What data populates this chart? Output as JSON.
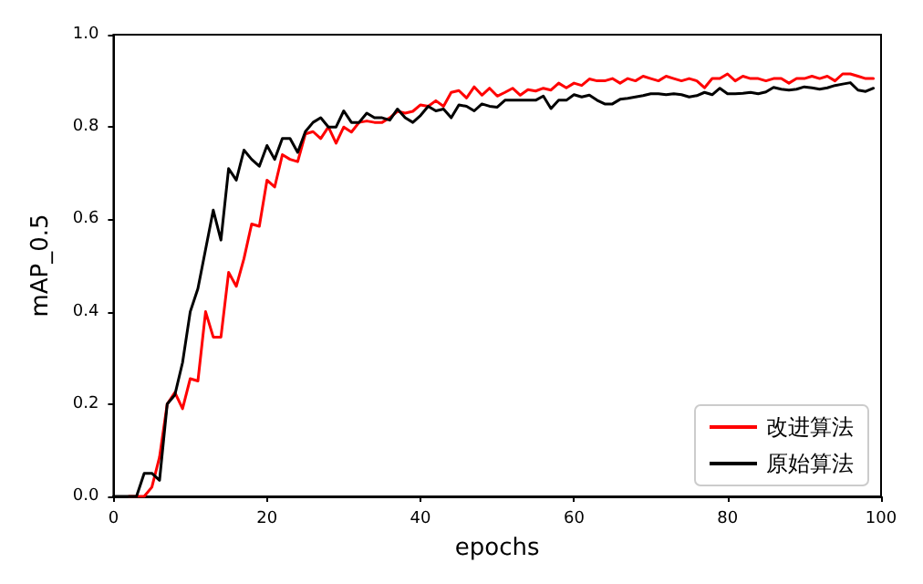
{
  "chart_data": {
    "type": "line",
    "xlabel": "epochs",
    "ylabel": "mAP_0.5",
    "x": [
      0,
      1,
      2,
      3,
      4,
      5,
      6,
      7,
      8,
      9,
      10,
      11,
      12,
      13,
      14,
      15,
      16,
      17,
      18,
      19,
      20,
      21,
      22,
      23,
      24,
      25,
      26,
      27,
      28,
      29,
      30,
      31,
      32,
      33,
      34,
      35,
      36,
      37,
      38,
      39,
      40,
      41,
      42,
      43,
      44,
      45,
      46,
      47,
      48,
      49,
      50,
      51,
      52,
      53,
      54,
      55,
      56,
      57,
      58,
      59,
      60,
      61,
      62,
      63,
      64,
      65,
      66,
      67,
      68,
      69,
      70,
      71,
      72,
      73,
      74,
      75,
      76,
      77,
      78,
      79,
      80,
      81,
      82,
      83,
      84,
      85,
      86,
      87,
      88,
      89,
      90,
      91,
      92,
      93,
      94,
      95,
      96,
      97,
      98,
      99
    ],
    "series": [
      {
        "name": "改进算法",
        "color": "#ff0000",
        "values": [
          null,
          null,
          0,
          0,
          0,
          0.02,
          0.085,
          0.2,
          0.225,
          0.19,
          0.255,
          0.25,
          0.4,
          0.345,
          0.345,
          0.485,
          0.455,
          0.515,
          0.59,
          0.585,
          0.685,
          0.67,
          0.74,
          0.73,
          0.725,
          0.785,
          0.79,
          0.775,
          0.8,
          0.765,
          0.8,
          0.789,
          0.81,
          0.813,
          0.81,
          0.81,
          0.82,
          0.834,
          0.83,
          0.834,
          0.848,
          0.845,
          0.857,
          0.845,
          0.875,
          0.879,
          0.863,
          0.887,
          0.869,
          0.884,
          0.867,
          0.875,
          0.884,
          0.869,
          0.881,
          0.878,
          0.884,
          0.88,
          0.895,
          0.885,
          0.895,
          0.89,
          0.904,
          0.9,
          0.9,
          0.905,
          0.895,
          0.905,
          0.9,
          0.91,
          0.905,
          0.9,
          0.91,
          0.905,
          0.9,
          0.905,
          0.9,
          0.885,
          0.905,
          0.905,
          0.915,
          0.9,
          0.91,
          0.905,
          0.905,
          0.9,
          0.905,
          0.905,
          0.895,
          0.905,
          0.905,
          0.91,
          0.905,
          0.91,
          0.9,
          0.915,
          0.915,
          0.91,
          0.905,
          0.905
        ]
      },
      {
        "name": "原始算法",
        "color": "#000000",
        "values": [
          0,
          0,
          0,
          0,
          0.05,
          0.05,
          0.035,
          0.2,
          0.22,
          0.29,
          0.4,
          0.45,
          0.535,
          0.62,
          0.555,
          0.71,
          0.685,
          0.75,
          0.73,
          0.715,
          0.76,
          0.73,
          0.775,
          0.775,
          0.745,
          0.79,
          0.81,
          0.82,
          0.8,
          0.8,
          0.835,
          0.81,
          0.81,
          0.83,
          0.82,
          0.82,
          0.815,
          0.839,
          0.82,
          0.81,
          0.825,
          0.845,
          0.835,
          0.839,
          0.82,
          0.848,
          0.845,
          0.835,
          0.85,
          0.845,
          0.843,
          0.858,
          0.858,
          0.858,
          0.858,
          0.858,
          0.867,
          0.84,
          0.858,
          0.858,
          0.87,
          0.865,
          0.869,
          0.858,
          0.85,
          0.85,
          0.86,
          0.862,
          0.865,
          0.868,
          0.872,
          0.872,
          0.87,
          0.872,
          0.87,
          0.865,
          0.868,
          0.875,
          0.87,
          0.884,
          0.872,
          0.872,
          0.873,
          0.875,
          0.872,
          0.876,
          0.886,
          0.882,
          0.88,
          0.882,
          0.887,
          0.885,
          0.882,
          0.885,
          0.89,
          0.893,
          0.896,
          0.88,
          0.877,
          0.884
        ]
      }
    ],
    "xlim": [
      0,
      100
    ],
    "xticks": [
      0,
      20,
      40,
      60,
      80,
      100
    ],
    "ylim": [
      0,
      1
    ],
    "yticks": [
      {
        "value": 0,
        "label": "0.0"
      },
      {
        "value": 0.2,
        "label": "0.2"
      },
      {
        "value": 0.4,
        "label": "0.4"
      },
      {
        "value": 0.6,
        "label": "0.6"
      },
      {
        "value": 0.8,
        "label": "0.8"
      },
      {
        "value": 1,
        "label": "1.0"
      }
    ],
    "legend": "bottom right",
    "grid": false,
    "marker": "none",
    "line_style": "solid"
  }
}
